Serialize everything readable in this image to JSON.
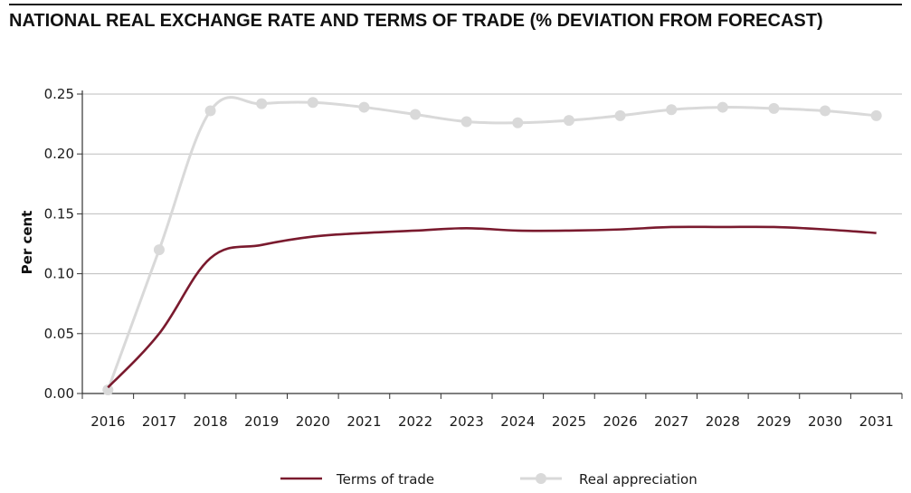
{
  "title": "NATIONAL REAL EXCHANGE RATE AND TERMS OF TRADE (% DEVIATION FROM FORECAST)",
  "chart_data": {
    "type": "line",
    "ylabel": "Per cent",
    "xlabel": "",
    "ylim": [
      0,
      0.25
    ],
    "y_ticks": [
      "0.00",
      "0.05",
      "0.10",
      "0.15",
      "0.20",
      "0.25"
    ],
    "categories": [
      "2016",
      "2017",
      "2018",
      "2019",
      "2020",
      "2021",
      "2022",
      "2023",
      "2024",
      "2025",
      "2026",
      "2027",
      "2028",
      "2029",
      "2030",
      "2031"
    ],
    "grid": "horizontal",
    "legend_position": "bottom",
    "series": [
      {
        "name": "Terms of trade",
        "color": "#7a1a2e",
        "marker": "none",
        "values": [
          0.005,
          0.05,
          0.113,
          0.124,
          0.131,
          0.134,
          0.136,
          0.138,
          0.136,
          0.136,
          0.137,
          0.139,
          0.139,
          0.139,
          0.137,
          0.134
        ]
      },
      {
        "name": "Real appreciation",
        "color": "#d9d9d9",
        "marker": "circle",
        "values": [
          0.003,
          0.12,
          0.236,
          0.242,
          0.243,
          0.239,
          0.233,
          0.227,
          0.226,
          0.228,
          0.232,
          0.237,
          0.239,
          0.238,
          0.236,
          0.232
        ]
      }
    ]
  }
}
